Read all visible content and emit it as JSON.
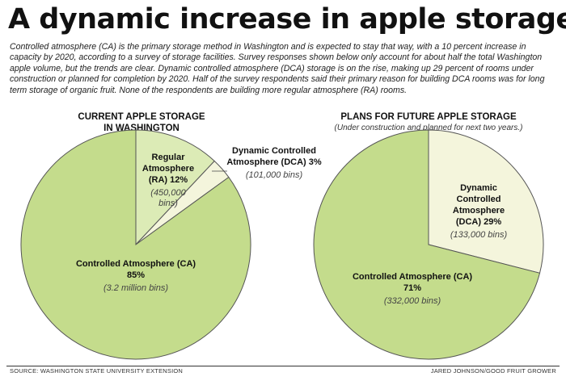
{
  "headline": "A dynamic increase in apple storage",
  "intro_lines": [
    "Controlled atmosphere (CA) is the primary storage method in Washington and is expected to stay that way, with a 10 percent increase in",
    "capacity by 2020, according to a survey of storage facilities. Survey responses shown below only account for about half the total Washington",
    "apple volume, but the trends are clear. Dynamic controlled atmosphere (DCA) storage is on the rise, making up 29 percent of rooms under",
    "construction or planned for completion by 2020. Half of the survey respondents said their primary reason for building DCA rooms was for long",
    "term storage of organic fruit. None of the respondents are building more regular atmosphere (RA) rooms."
  ],
  "colors": {
    "ca": "#c4dc8c",
    "ra": "#dcebb6",
    "dca": "#f4f5dc",
    "stroke": "#555555"
  },
  "chart_data": [
    {
      "type": "pie",
      "title_lines": [
        "CURRENT APPLE STORAGE",
        "IN WASHINGTON"
      ],
      "start_angle_deg": 0,
      "slices": [
        {
          "key": "ra",
          "percent": 12,
          "name_lines": [
            "Regular",
            "Atmosphere",
            "(RA) 12%"
          ],
          "detail_lines": [
            "(450,000",
            "bins)"
          ]
        },
        {
          "key": "dca",
          "percent": 3,
          "name_lines": [
            "Dynamic Controlled",
            "Atmosphere (DCA) 3%"
          ],
          "detail_lines": [
            "(101,000 bins)"
          ]
        },
        {
          "key": "ca",
          "percent": 85,
          "name_lines": [
            "Controlled Atmosphere (CA)",
            "85%"
          ],
          "detail_lines": [
            "(3.2 million bins)"
          ]
        }
      ]
    },
    {
      "type": "pie",
      "title_lines": [
        "PLANS FOR FUTURE APPLE STORAGE"
      ],
      "subtitle": "(Under construction and planned for next two years.)",
      "start_angle_deg": 0,
      "slices": [
        {
          "key": "dca",
          "percent": 29,
          "name_lines": [
            "Dynamic",
            "Controlled",
            "Atmosphere",
            "(DCA) 29%"
          ],
          "detail_lines": [
            "(133,000 bins)"
          ]
        },
        {
          "key": "ca",
          "percent": 71,
          "name_lines": [
            "Controlled Atmosphere (CA)",
            "71%"
          ],
          "detail_lines": [
            "(332,000 bins)"
          ]
        }
      ]
    }
  ],
  "footer": {
    "source": "SOURCE: WASHINGTON STATE UNIVERSITY EXTENSION",
    "credit": "JARED JOHNSON/GOOD FRUIT GROWER"
  }
}
